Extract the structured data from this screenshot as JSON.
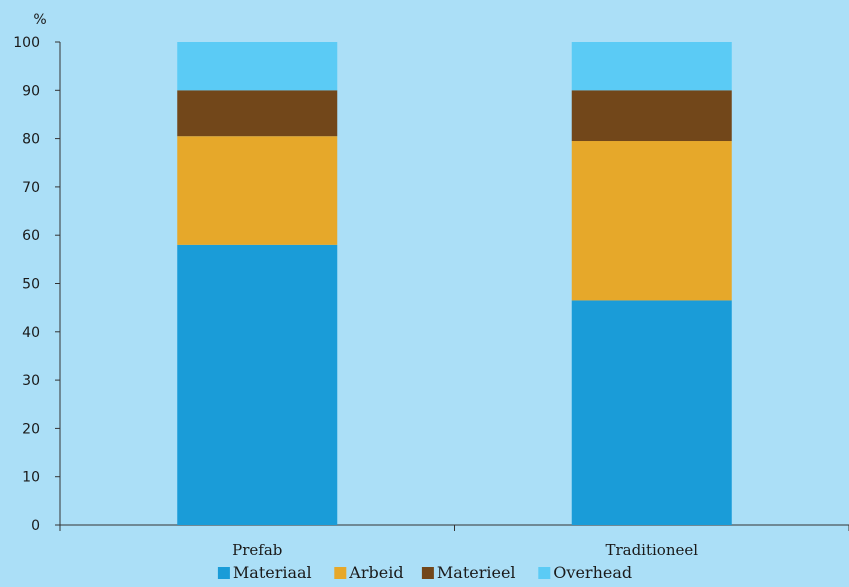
{
  "chart_data": {
    "type": "bar",
    "stacked": true,
    "title": "",
    "xlabel": "",
    "ylabel": "%",
    "ylim": [
      0,
      100
    ],
    "yticks": [
      0,
      10,
      20,
      30,
      40,
      50,
      60,
      70,
      80,
      90,
      100
    ],
    "categories": [
      "Prefab",
      "Traditioneel"
    ],
    "series": [
      {
        "name": "Materiaal",
        "color": "#1a9cd8",
        "values": [
          58,
          46.5
        ]
      },
      {
        "name": "Arbeid",
        "color": "#e6a82a",
        "values": [
          22.5,
          33
        ]
      },
      {
        "name": "Materieel",
        "color": "#72471a",
        "values": [
          9.5,
          10.5
        ]
      },
      {
        "name": "Overhead",
        "color": "#5bcbf5",
        "values": [
          10,
          10
        ]
      }
    ],
    "grid": false,
    "legend_position": "bottom"
  }
}
